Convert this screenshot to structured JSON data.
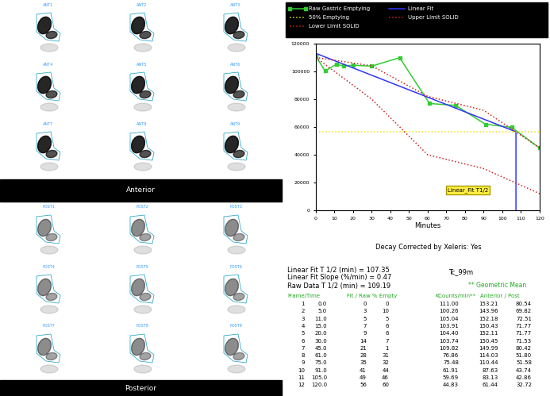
{
  "panels": {
    "anterior": {
      "caption": "Anterior",
      "frames": [
        "ANT1",
        "ANT2",
        "ANT3",
        "ANT4",
        "ANT5",
        "ANT6",
        "ANT7",
        "ANT8",
        "ANT9"
      ]
    },
    "posterior": {
      "caption": "Posterior",
      "frames": [
        "POST1",
        "POST2",
        "POST3",
        "POST4",
        "POST5",
        "POST6",
        "POST7",
        "POST8",
        "POST9"
      ]
    }
  },
  "chart_data": {
    "type": "line",
    "xlabel": "Minutes",
    "xlim": [
      0,
      120
    ],
    "ylim": [
      0,
      120000
    ],
    "xticks": [
      0,
      10,
      20,
      30,
      40,
      50,
      60,
      70,
      80,
      90,
      100,
      110,
      120
    ],
    "yticks": [
      0,
      20000,
      40000,
      60000,
      80000,
      100000,
      120000
    ],
    "annotation": "Linear_Fit T1/2",
    "series": [
      {
        "name": "Raw Gastric Emptying",
        "color": "#33cc33",
        "marker": "square",
        "line_style": "solid",
        "x": [
          0,
          5,
          11,
          15,
          20,
          30,
          45,
          61,
          75,
          91,
          105,
          120
        ],
        "values": [
          111000,
          100260,
          105040,
          103910,
          104400,
          103740,
          109820,
          76860,
          75480,
          61910,
          59690,
          44830
        ]
      },
      {
        "name": "Linear Fit",
        "color": "#3333ff",
        "marker": "none",
        "line_style": "solid",
        "x": [
          0,
          107.35,
          107.35
        ],
        "values": [
          113000,
          56500,
          0
        ]
      },
      {
        "name": "50% Emptying",
        "color": "#e6e600",
        "marker": "none",
        "line_style": "dotted",
        "x": [
          0,
          120
        ],
        "values": [
          56500,
          56500
        ]
      },
      {
        "name": "Upper Limit SOLID",
        "color": "#cc2222",
        "marker": "none",
        "line_style": "dotted",
        "x": [
          0,
          30,
          60,
          90,
          120
        ],
        "values": [
          110000,
          104000,
          82000,
          72000,
          45000
        ]
      },
      {
        "name": "Lower Limit SOLID",
        "color": "#cc2222",
        "marker": "none",
        "line_style": "dotted",
        "x": [
          0,
          30,
          60,
          90,
          120
        ],
        "values": [
          110000,
          80000,
          40000,
          30000,
          12000
        ]
      }
    ]
  },
  "footer": {
    "note": "Decay Corrected by Xeleris: Yes",
    "stats": [
      "Linear Fit T 1/2 (min) = 107.35",
      "Linear Fit Slope (%/min) = 0.47",
      "Raw Data T 1/2 (min) = 109.19"
    ],
    "isotope": "Tc_99m",
    "table_title": "** Geometric Mean",
    "table": {
      "headers": [
        "Frame/Time",
        "Fit / Raw % Empty",
        "KCounts/min**",
        "Anterior / Post"
      ],
      "rows": [
        [
          "1",
          "0.0",
          "0",
          "0",
          "111.00",
          "153.21",
          "80.54"
        ],
        [
          "2",
          "5.0",
          "3",
          "10",
          "100.26",
          "143.96",
          "69.82"
        ],
        [
          "3",
          "11.0",
          "5",
          "5",
          "105.04",
          "152.18",
          "72.51"
        ],
        [
          "4",
          "15.0",
          "7",
          "6",
          "103.91",
          "150.43",
          "71.77"
        ],
        [
          "5",
          "20.0",
          "9",
          "6",
          "104.40",
          "152.11",
          "71.77"
        ],
        [
          "6",
          "30.0",
          "14",
          "7",
          "103.74",
          "150.45",
          "71.53"
        ],
        [
          "7",
          "45.0",
          "21",
          "1",
          "109.82",
          "149.99",
          "80.42"
        ],
        [
          "8",
          "61.0",
          "28",
          "31",
          "76.86",
          "114.03",
          "51.80"
        ],
        [
          "9",
          "75.0",
          "35",
          "32",
          "75.48",
          "110.44",
          "51.58"
        ],
        [
          "10",
          "91.0",
          "41",
          "44",
          "61.91",
          "87.63",
          "43.74"
        ],
        [
          "11",
          "105.0",
          "49",
          "46",
          "59.69",
          "83.13",
          "42.86"
        ],
        [
          "12",
          "120.0",
          "56",
          "60",
          "44.83",
          "61.44",
          "32.72"
        ]
      ]
    }
  }
}
